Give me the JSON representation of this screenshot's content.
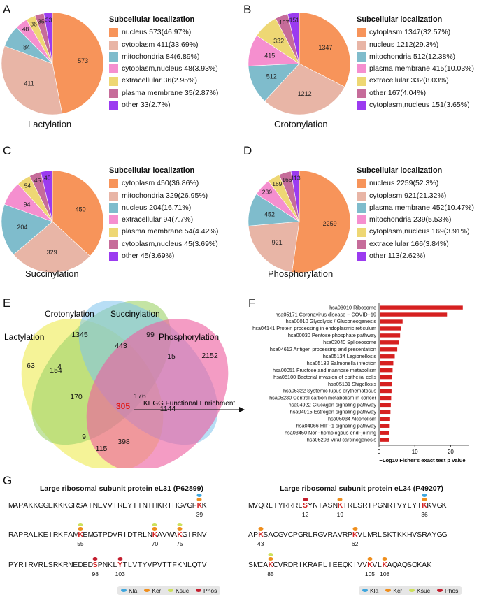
{
  "colors": {
    "orange": "#f7945a",
    "salmon": "#e8b5a6",
    "teal": "#7fbccc",
    "pink": "#f58fcf",
    "yellow": "#eed774",
    "mauve": "#c66c9a",
    "purple": "#9b3bf0",
    "venn_yellow": "#f2ef7a",
    "venn_green": "#9fd46c",
    "venn_blue": "#7ec3ec",
    "venn_pink": "#ee5fa0",
    "bar_red": "#d62020",
    "mod_kla": "#3fa6dd",
    "mod_kcr": "#ef8e1c",
    "mod_ksuc": "#cde05a",
    "mod_phos": "#c41e2e"
  },
  "chart_data": [
    {
      "panel": "A",
      "type": "pie",
      "title": "Lactylation",
      "legend_title": "Subcellular localization",
      "slices": [
        {
          "label": "nucleus 573(46.97%)",
          "value": 573,
          "color": "orange"
        },
        {
          "label": "cytoplasm 411(33.69%)",
          "value": 411,
          "color": "salmon"
        },
        {
          "label": "mitochondria 84(6.89%)",
          "value": 84,
          "color": "teal"
        },
        {
          "label": "cytoplasm,nucleus 48(3.93%)",
          "value": 48,
          "color": "pink"
        },
        {
          "label": "extracellular 36(2.95%)",
          "value": 36,
          "color": "yellow"
        },
        {
          "label": "plasma membrane 35(2.87%)",
          "value": 35,
          "color": "mauve"
        },
        {
          "label": "other 33(2.7%)",
          "value": 33,
          "color": "purple"
        }
      ]
    },
    {
      "panel": "B",
      "type": "pie",
      "title": "Crotonylation",
      "legend_title": "Subcellular localization",
      "slices": [
        {
          "label": "cytoplasm 1347(32.57%)",
          "value": 1347,
          "color": "orange"
        },
        {
          "label": "nucleus 1212(29.3%)",
          "value": 1212,
          "color": "salmon"
        },
        {
          "label": "mitochondria 512(12.38%)",
          "value": 512,
          "color": "teal"
        },
        {
          "label": "plasma membrane 415(10.03%)",
          "value": 415,
          "color": "pink"
        },
        {
          "label": "extracellular 332(8.03%)",
          "value": 332,
          "color": "yellow"
        },
        {
          "label": "other 167(4.04%)",
          "value": 167,
          "color": "mauve"
        },
        {
          "label": "cytoplasm,nucleus 151(3.65%)",
          "value": 151,
          "color": "purple"
        }
      ]
    },
    {
      "panel": "C",
      "type": "pie",
      "title": "Succinylation",
      "legend_title": "Subcellular localization",
      "slices": [
        {
          "label": "cytoplasm 450(36.86%)",
          "value": 450,
          "color": "orange"
        },
        {
          "label": "mitochondria 329(26.95%)",
          "value": 329,
          "color": "salmon"
        },
        {
          "label": "nucleus 204(16.71%)",
          "value": 204,
          "color": "teal"
        },
        {
          "label": "extracellular 94(7.7%)",
          "value": 94,
          "color": "pink"
        },
        {
          "label": "plasma membrane 54(4.42%)",
          "value": 54,
          "color": "yellow"
        },
        {
          "label": "cytoplasm,nucleus 45(3.69%)",
          "value": 45,
          "color": "mauve"
        },
        {
          "label": "other 45(3.69%)",
          "value": 45,
          "color": "purple"
        }
      ]
    },
    {
      "panel": "D",
      "type": "pie",
      "title": "Phosphorylation",
      "legend_title": "Subcellular localization",
      "slices": [
        {
          "label": "nucleus 2259(52.3%)",
          "value": 2259,
          "color": "orange"
        },
        {
          "label": "cytoplasm 921(21.32%)",
          "value": 921,
          "color": "salmon"
        },
        {
          "label": "plasma membrane 452(10.47%)",
          "value": 452,
          "color": "teal"
        },
        {
          "label": "mitochondria 239(5.53%)",
          "value": 239,
          "color": "pink"
        },
        {
          "label": "cytoplasm,nucleus 169(3.91%)",
          "value": 169,
          "color": "yellow"
        },
        {
          "label": "extracellular 166(3.84%)",
          "value": 166,
          "color": "mauve"
        },
        {
          "label": "other 113(2.62%)",
          "value": 113,
          "color": "purple"
        }
      ]
    },
    {
      "panel": "E",
      "type": "venn",
      "sets": [
        "Lactylation",
        "Crotonylation",
        "Succinylation",
        "Phosphorylation"
      ],
      "regions": [
        {
          "sets": [
            "Lactylation"
          ],
          "value": 63
        },
        {
          "sets": [
            "Crotonylation"
          ],
          "value": 1345
        },
        {
          "sets": [
            "Succinylation"
          ],
          "value": 99
        },
        {
          "sets": [
            "Phosphorylation"
          ],
          "value": 2152
        },
        {
          "sets": [
            "Lactylation",
            "Crotonylation"
          ],
          "value": 154
        },
        {
          "sets": [
            "Crotonylation",
            "Succinylation"
          ],
          "value": 443
        },
        {
          "sets": [
            "Succinylation",
            "Phosphorylation"
          ],
          "value": 15
        },
        {
          "sets": [
            "Lactylation",
            "Crotonylation",
            "Succinylation"
          ],
          "value": 170
        },
        {
          "sets": [
            "Crotonylation",
            "Succinylation",
            "Phosphorylation"
          ],
          "value": 176
        },
        {
          "sets": [
            "Lactylation",
            "Succinylation"
          ],
          "value": 4
        },
        {
          "sets": [
            "Lactylation",
            "Crotonylation",
            "Succinylation",
            "Phosphorylation"
          ],
          "value": 305
        },
        {
          "sets": [
            "Crotonylation",
            "Phosphorylation"
          ],
          "value": 1144
        },
        {
          "sets": [
            "Lactylation",
            "Succinylation",
            "Phosphorylation"
          ],
          "value": 9
        },
        {
          "sets": [
            "Lactylation",
            "Crotonylation",
            "Phosphorylation"
          ],
          "value": 398
        },
        {
          "sets": [
            "Lactylation",
            "Phosphorylation"
          ],
          "value": 115
        }
      ],
      "arrow_label": "KEGG Functional Enrichment"
    },
    {
      "panel": "F",
      "type": "bar",
      "orientation": "horizontal",
      "xlabel": "−Log10 Fisher's exact test p value",
      "xlim": [
        0,
        25
      ],
      "xticks": [
        0,
        10,
        20
      ],
      "categories": [
        "hsa03010 Ribosome",
        "hsa05171 Coronavirus disease − COVID−19",
        "hsa00010 Glycolysis / Gluconeogenesis",
        "hsa04141 Protein processing in endoplasmic reticulum",
        "hsa00030 Pentose phosphate pathway",
        "hsa03040 Spliceosome",
        "hsa04612 Antigen processing and presentation",
        "hsa05134 Legionellosis",
        "hsa05132 Salmonella infection",
        "hsa00051 Fructose and mannose metabolism",
        "hsa05100 Bacterial invasion of epithelial cells",
        "hsa05131 Shigellosis",
        "hsa05322 Systemic lupus erythematosus",
        "hsa05230 Central carbon metabolism in cancer",
        "hsa04922 Glucagon signaling pathway",
        "hsa04915 Estrogen signaling pathway",
        "hsa05034 Alcoholism",
        "hsa04066 HIF−1 signaling pathway",
        "hsa03450 Non−homologous end−joining",
        "hsa05203 Viral carcinogenesis"
      ],
      "values": [
        23.2,
        18.8,
        6.4,
        5.9,
        5.7,
        5.4,
        4.9,
        4.2,
        3.8,
        3.6,
        3.5,
        3.4,
        3.3,
        3.2,
        3.1,
        3.0,
        2.9,
        2.8,
        2.7,
        2.6
      ]
    }
  ],
  "panel_g": {
    "letter": "G",
    "legend": [
      "Kla",
      "Kcr",
      "Ksuc",
      "Phos"
    ],
    "proteins": [
      {
        "title": "Large ribosomal subunit protein eL31 (P62899)",
        "lines": [
          {
            "seq": "MAPAKKGGEKKKGRSAINEVVTREYTINIHKRIHGVGFKK",
            "mods": [
              {
                "pos": 39,
                "idx": 38,
                "dots": [
                  "mod_kla",
                  "mod_kcr"
                ]
              }
            ]
          },
          {
            "seq": "RAPRALKEIRKFAMKEMGTPDVRIDTRLNKAVWAKGIRNV",
            "mods": [
              {
                "pos": 55,
                "idx": 14,
                "dots": [
                  "mod_ksuc",
                  "mod_kcr"
                ]
              },
              {
                "pos": 70,
                "idx": 29,
                "dots": [
                  "mod_ksuc",
                  "mod_kcr"
                ]
              },
              {
                "pos": 75,
                "idx": 34,
                "dots": [
                  "mod_ksuc",
                  "mod_kcr"
                ]
              }
            ]
          },
          {
            "seq": "PYRIRVRLSRKRNEDEDSPNKLYTLVTYVPVTTFKNLQTV",
            "mods": [
              {
                "pos": 98,
                "idx": 17,
                "dots": [
                  "mod_phos"
                ]
              },
              {
                "pos": 103,
                "idx": 22,
                "dots": [
                  "mod_phos"
                ]
              }
            ]
          }
        ]
      },
      {
        "title": "Large ribosomal subunit protein eL34 (P49207)",
        "lines": [
          {
            "seq": "MVQRLTYRRRLSYNTASNKTRLSRTPGNRIVYLYTKKVGK",
            "mods": [
              {
                "pos": 12,
                "idx": 11,
                "dots": [
                  "mod_phos"
                ]
              },
              {
                "pos": 19,
                "idx": 18,
                "dots": [
                  "mod_kcr"
                ]
              },
              {
                "pos": 36,
                "idx": 35,
                "dots": [
                  "mod_kla",
                  "mod_kcr"
                ]
              }
            ]
          },
          {
            "seq": "APKSACGVCPGRLRGVRAVRPKVLMRLSKTKKHVSRAYGG",
            "mods": [
              {
                "pos": 43,
                "idx": 2,
                "dots": [
                  "mod_kcr"
                ]
              },
              {
                "pos": 62,
                "idx": 21,
                "dots": [
                  "mod_kcr"
                ]
              }
            ]
          },
          {
            "seq": "SMCAKCVRDRIKRAFLIEEQKIVVKVLKAQAQSQKAK",
            "mods": [
              {
                "pos": 85,
                "idx": 4,
                "dots": [
                  "mod_ksuc",
                  "mod_kcr"
                ]
              },
              {
                "pos": 105,
                "idx": 24,
                "dots": [
                  "mod_kcr"
                ]
              },
              {
                "pos": 108,
                "idx": 27,
                "dots": [
                  "mod_kcr"
                ]
              }
            ]
          }
        ]
      }
    ]
  }
}
